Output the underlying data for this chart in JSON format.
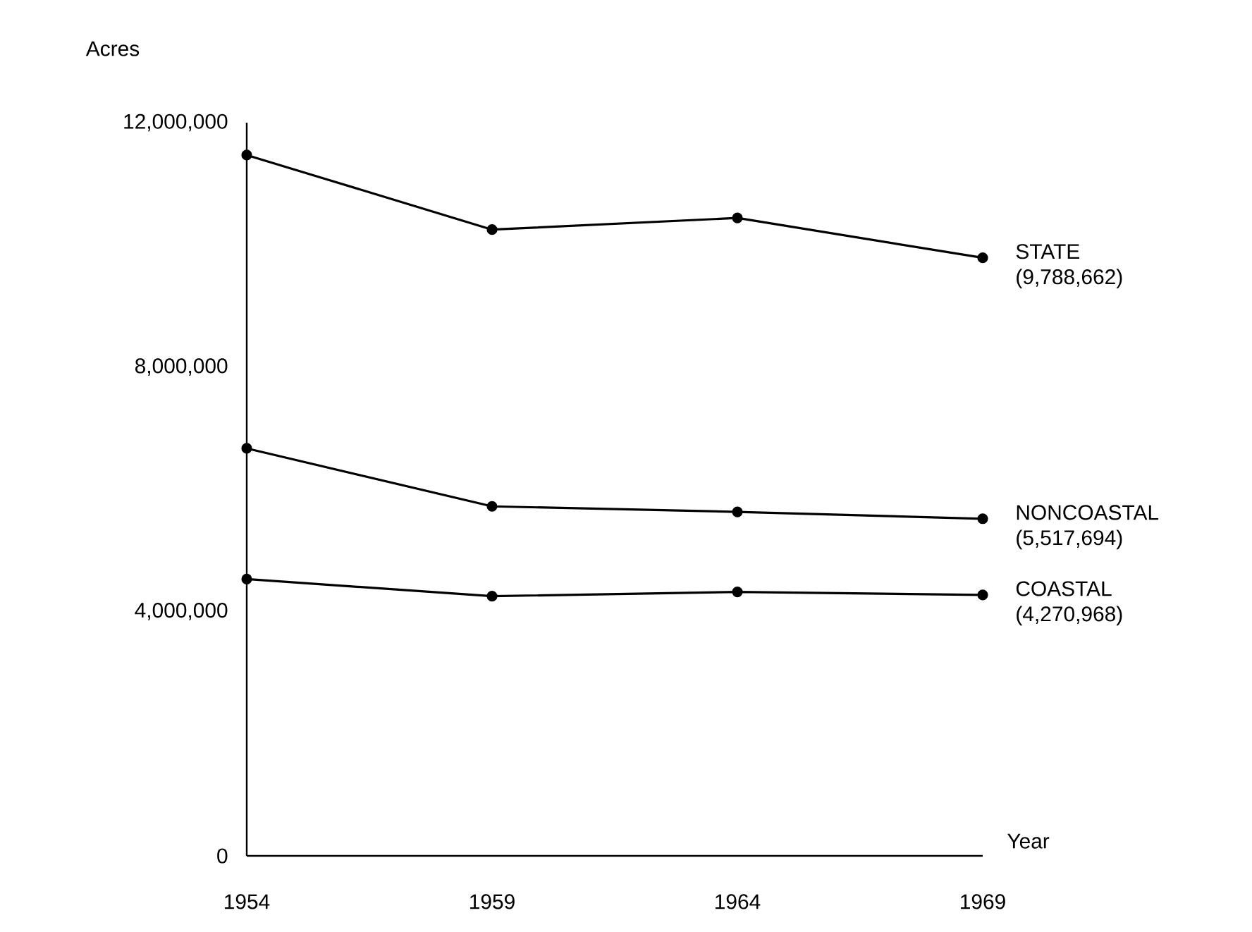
{
  "chart_data": {
    "type": "line",
    "xlabel": "Year",
    "ylabel": "Acres",
    "x": [
      1954,
      1959,
      1964,
      1969
    ],
    "xlim": [
      1954,
      1969
    ],
    "xticks": [
      1954,
      1959,
      1964,
      1969
    ],
    "ylim": [
      0,
      12000000
    ],
    "yticks": [
      0,
      {
        "value": 4000000,
        "label": "4,000,000"
      },
      {
        "value": 8000000,
        "label": "8,000,000"
      },
      {
        "value": 12000000,
        "label": "12,000,000"
      }
    ],
    "series": [
      {
        "name": "STATE",
        "color": "#000000",
        "values": [
          11470000,
          10250000,
          10440000,
          9788662
        ],
        "value_labels": [
          null,
          null,
          null,
          "(9,788,662)"
        ]
      },
      {
        "name": "NONCOASTAL",
        "color": "#000000",
        "values": [
          6670000,
          5720000,
          5630000,
          5517694
        ],
        "value_labels": [
          null,
          null,
          null,
          "(5,517,694)"
        ]
      },
      {
        "name": "COASTAL",
        "color": "#000000",
        "values": [
          4530000,
          4250000,
          4320000,
          4270968
        ],
        "value_labels": [
          null,
          null,
          null,
          "(4,270,968)"
        ]
      }
    ],
    "marker": "circle",
    "line_style": "solid",
    "legend": false
  }
}
